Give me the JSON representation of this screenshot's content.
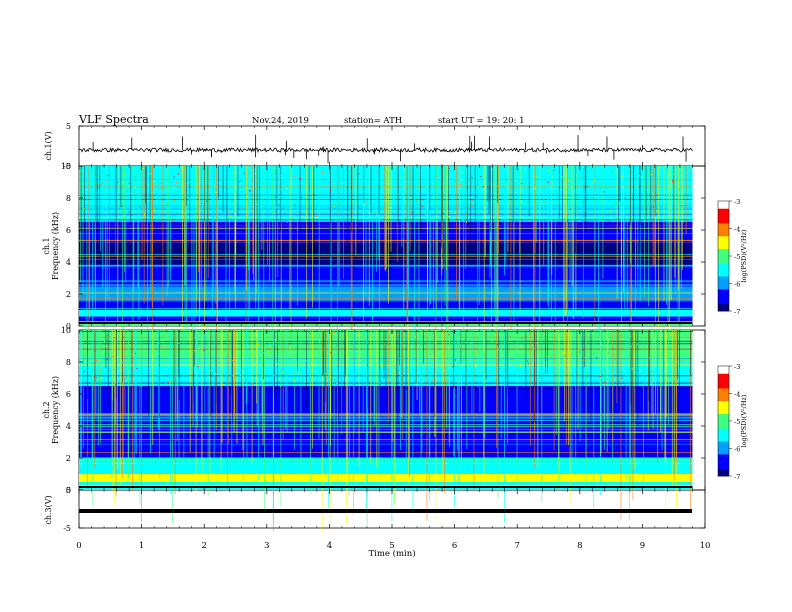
{
  "header": {
    "title": "VLF  Spectra",
    "date": "Nov.24, 2019",
    "station": "station= ATH",
    "start": "start  UT  =    19: 20: 1"
  },
  "chart_data": [
    {
      "type": "line",
      "name": "ch1-waveform",
      "ylabel": "ch.1(V)",
      "ylim": [
        -5,
        5
      ],
      "yticks": [
        "5",
        "-5"
      ],
      "xlim": [
        0,
        10
      ],
      "baseline": -1.0
    },
    {
      "type": "heatmap",
      "name": "ch1-spectrogram",
      "ylabel": "ch.1\nFrequency  (kHz)",
      "ylabel_lines": [
        "ch.1",
        "Frequency  (kHz)"
      ],
      "ylim": [
        0,
        10
      ],
      "yticks": [
        "0",
        "2",
        "4",
        "6",
        "8",
        "10"
      ],
      "xlim": [
        0,
        9.8
      ],
      "colorbar": {
        "label": "log(PSD)(V²/Hz)",
        "range": [
          -7,
          -3
        ],
        "ticks": [
          "-3",
          "-4",
          "-5",
          "-6",
          "-7"
        ]
      },
      "band_levels": [
        {
          "f0": 0,
          "f1": 0.3,
          "level": -5.2
        },
        {
          "f0": 0.3,
          "f1": 0.6,
          "level": -6.4
        },
        {
          "f0": 0.6,
          "f1": 1.0,
          "level": -5.6
        },
        {
          "f0": 1.0,
          "f1": 1.6,
          "level": -6.3
        },
        {
          "f0": 1.6,
          "f1": 2.6,
          "level": -6.1
        },
        {
          "f0": 2.6,
          "f1": 3.8,
          "level": -6.7
        },
        {
          "f0": 3.8,
          "f1": 5.2,
          "level": -6.95
        },
        {
          "f0": 5.2,
          "f1": 6.5,
          "level": -6.4
        },
        {
          "f0": 6.5,
          "f1": 8.0,
          "level": -5.6
        },
        {
          "f0": 8.0,
          "f1": 10,
          "level": -5.35
        }
      ]
    },
    {
      "type": "heatmap",
      "name": "ch2-spectrogram",
      "ylabel": "ch.2\nFrequency  (kHz)",
      "ylabel_lines": [
        "ch.2",
        "Frequency  (kHz)"
      ],
      "ylim": [
        0,
        10
      ],
      "yticks": [
        "0",
        "2",
        "4",
        "6",
        "8",
        "10"
      ],
      "xlim": [
        0,
        9.8
      ],
      "colorbar": {
        "label": "log(PSD)(V²/Hz)",
        "range": [
          -7,
          -3
        ],
        "ticks": [
          "-3",
          "-4",
          "-5",
          "-6",
          "-7"
        ]
      },
      "band_levels": [
        {
          "f0": 0,
          "f1": 0.5,
          "level": -5.6
        },
        {
          "f0": 0.5,
          "f1": 1.0,
          "level": -4.4
        },
        {
          "f0": 1.0,
          "f1": 2.0,
          "level": -5.5
        },
        {
          "f0": 2.0,
          "f1": 3.5,
          "level": -6.3
        },
        {
          "f0": 3.5,
          "f1": 5.0,
          "level": -6.6
        },
        {
          "f0": 5.0,
          "f1": 6.5,
          "level": -6.3
        },
        {
          "f0": 6.5,
          "f1": 8.0,
          "level": -5.6
        },
        {
          "f0": 8.0,
          "f1": 10,
          "level": -5.0
        }
      ]
    },
    {
      "type": "line",
      "name": "ch3-waveform",
      "ylabel": "ch.3(V)",
      "ylim": [
        -5,
        5
      ],
      "yticks": [
        "5",
        "-5"
      ],
      "xlim": [
        0,
        10
      ],
      "baseline": 0.0
    }
  ],
  "xaxis": {
    "label": "Time  (min)",
    "ticks": [
      "0",
      "1",
      "2",
      "3",
      "4",
      "5",
      "6",
      "7",
      "8",
      "9",
      "10"
    ]
  },
  "colors": {
    "colormap": [
      "#000080",
      "#0000ff",
      "#00a0ff",
      "#00ffff",
      "#40ff80",
      "#ffff00",
      "#ff8000",
      "#ff0000",
      "#ffffff"
    ]
  }
}
